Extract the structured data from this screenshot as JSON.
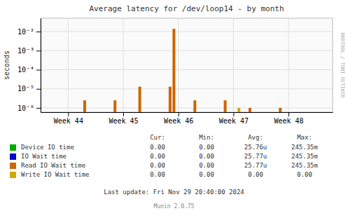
{
  "chart_data": {
    "type": "bar",
    "title": "Average latency for /dev/loop14 - by month",
    "y_label": "seconds",
    "log": "y",
    "grid": true,
    "xlim": [
      43.5,
      48.8
    ],
    "xticks": [
      {
        "value": 44,
        "label": "Week 44"
      },
      {
        "value": 45,
        "label": "Week 45"
      },
      {
        "value": 46,
        "label": "Week 46"
      },
      {
        "value": 47,
        "label": "Week 47"
      },
      {
        "value": 48,
        "label": "Week 48"
      }
    ],
    "ylim": [
      6e-07,
      0.05
    ],
    "yticks": [
      {
        "value": 1e-06,
        "label": "10⁻⁶"
      },
      {
        "value": 1e-05,
        "label": "10⁻⁵"
      },
      {
        "value": 0.0001,
        "label": "10⁻⁴"
      },
      {
        "value": 0.001,
        "label": "10⁻³"
      },
      {
        "value": 0.01,
        "label": "10⁻²"
      }
    ],
    "series": [
      {
        "name": "Device IO time",
        "color": "#00aa00",
        "x": [],
        "values": []
      },
      {
        "name": "IO Wait time",
        "color": "#0000cc",
        "x": [],
        "values": []
      },
      {
        "name": "Read IO Wait time",
        "color": "#cc6600",
        "x": [
          44.3,
          44.85,
          45.3,
          45.85,
          45.92,
          46.3,
          46.85,
          47.3,
          47.85
        ],
        "values": [
          2.5e-06,
          2.5e-06,
          1.3e-05,
          1.3e-05,
          0.014,
          2.5e-06,
          2.5e-06,
          1e-06,
          1e-06
        ]
      },
      {
        "name": "Write IO Wait time",
        "color": "#ccaa00",
        "x": [
          47.1
        ],
        "values": [
          1e-06
        ]
      }
    ],
    "legend_table": {
      "columns": [
        "Cur:",
        "Min:",
        "Avg:",
        "Max:"
      ],
      "rows": [
        [
          "0.00",
          "0.00",
          "25.76u",
          "245.35m"
        ],
        [
          "0.00",
          "0.00",
          "25.77u",
          "245.35m"
        ],
        [
          "0.00",
          "0.00",
          "25.77u",
          "245.35m"
        ],
        [
          "0.00",
          "0.00",
          "0.00",
          "0.00"
        ]
      ]
    },
    "annotations": [
      "Last update: Fri Nov 29 20:40:00 2024",
      "Munin 2.0.75",
      "RRDTOOL / TOBI OETIKER"
    ]
  }
}
